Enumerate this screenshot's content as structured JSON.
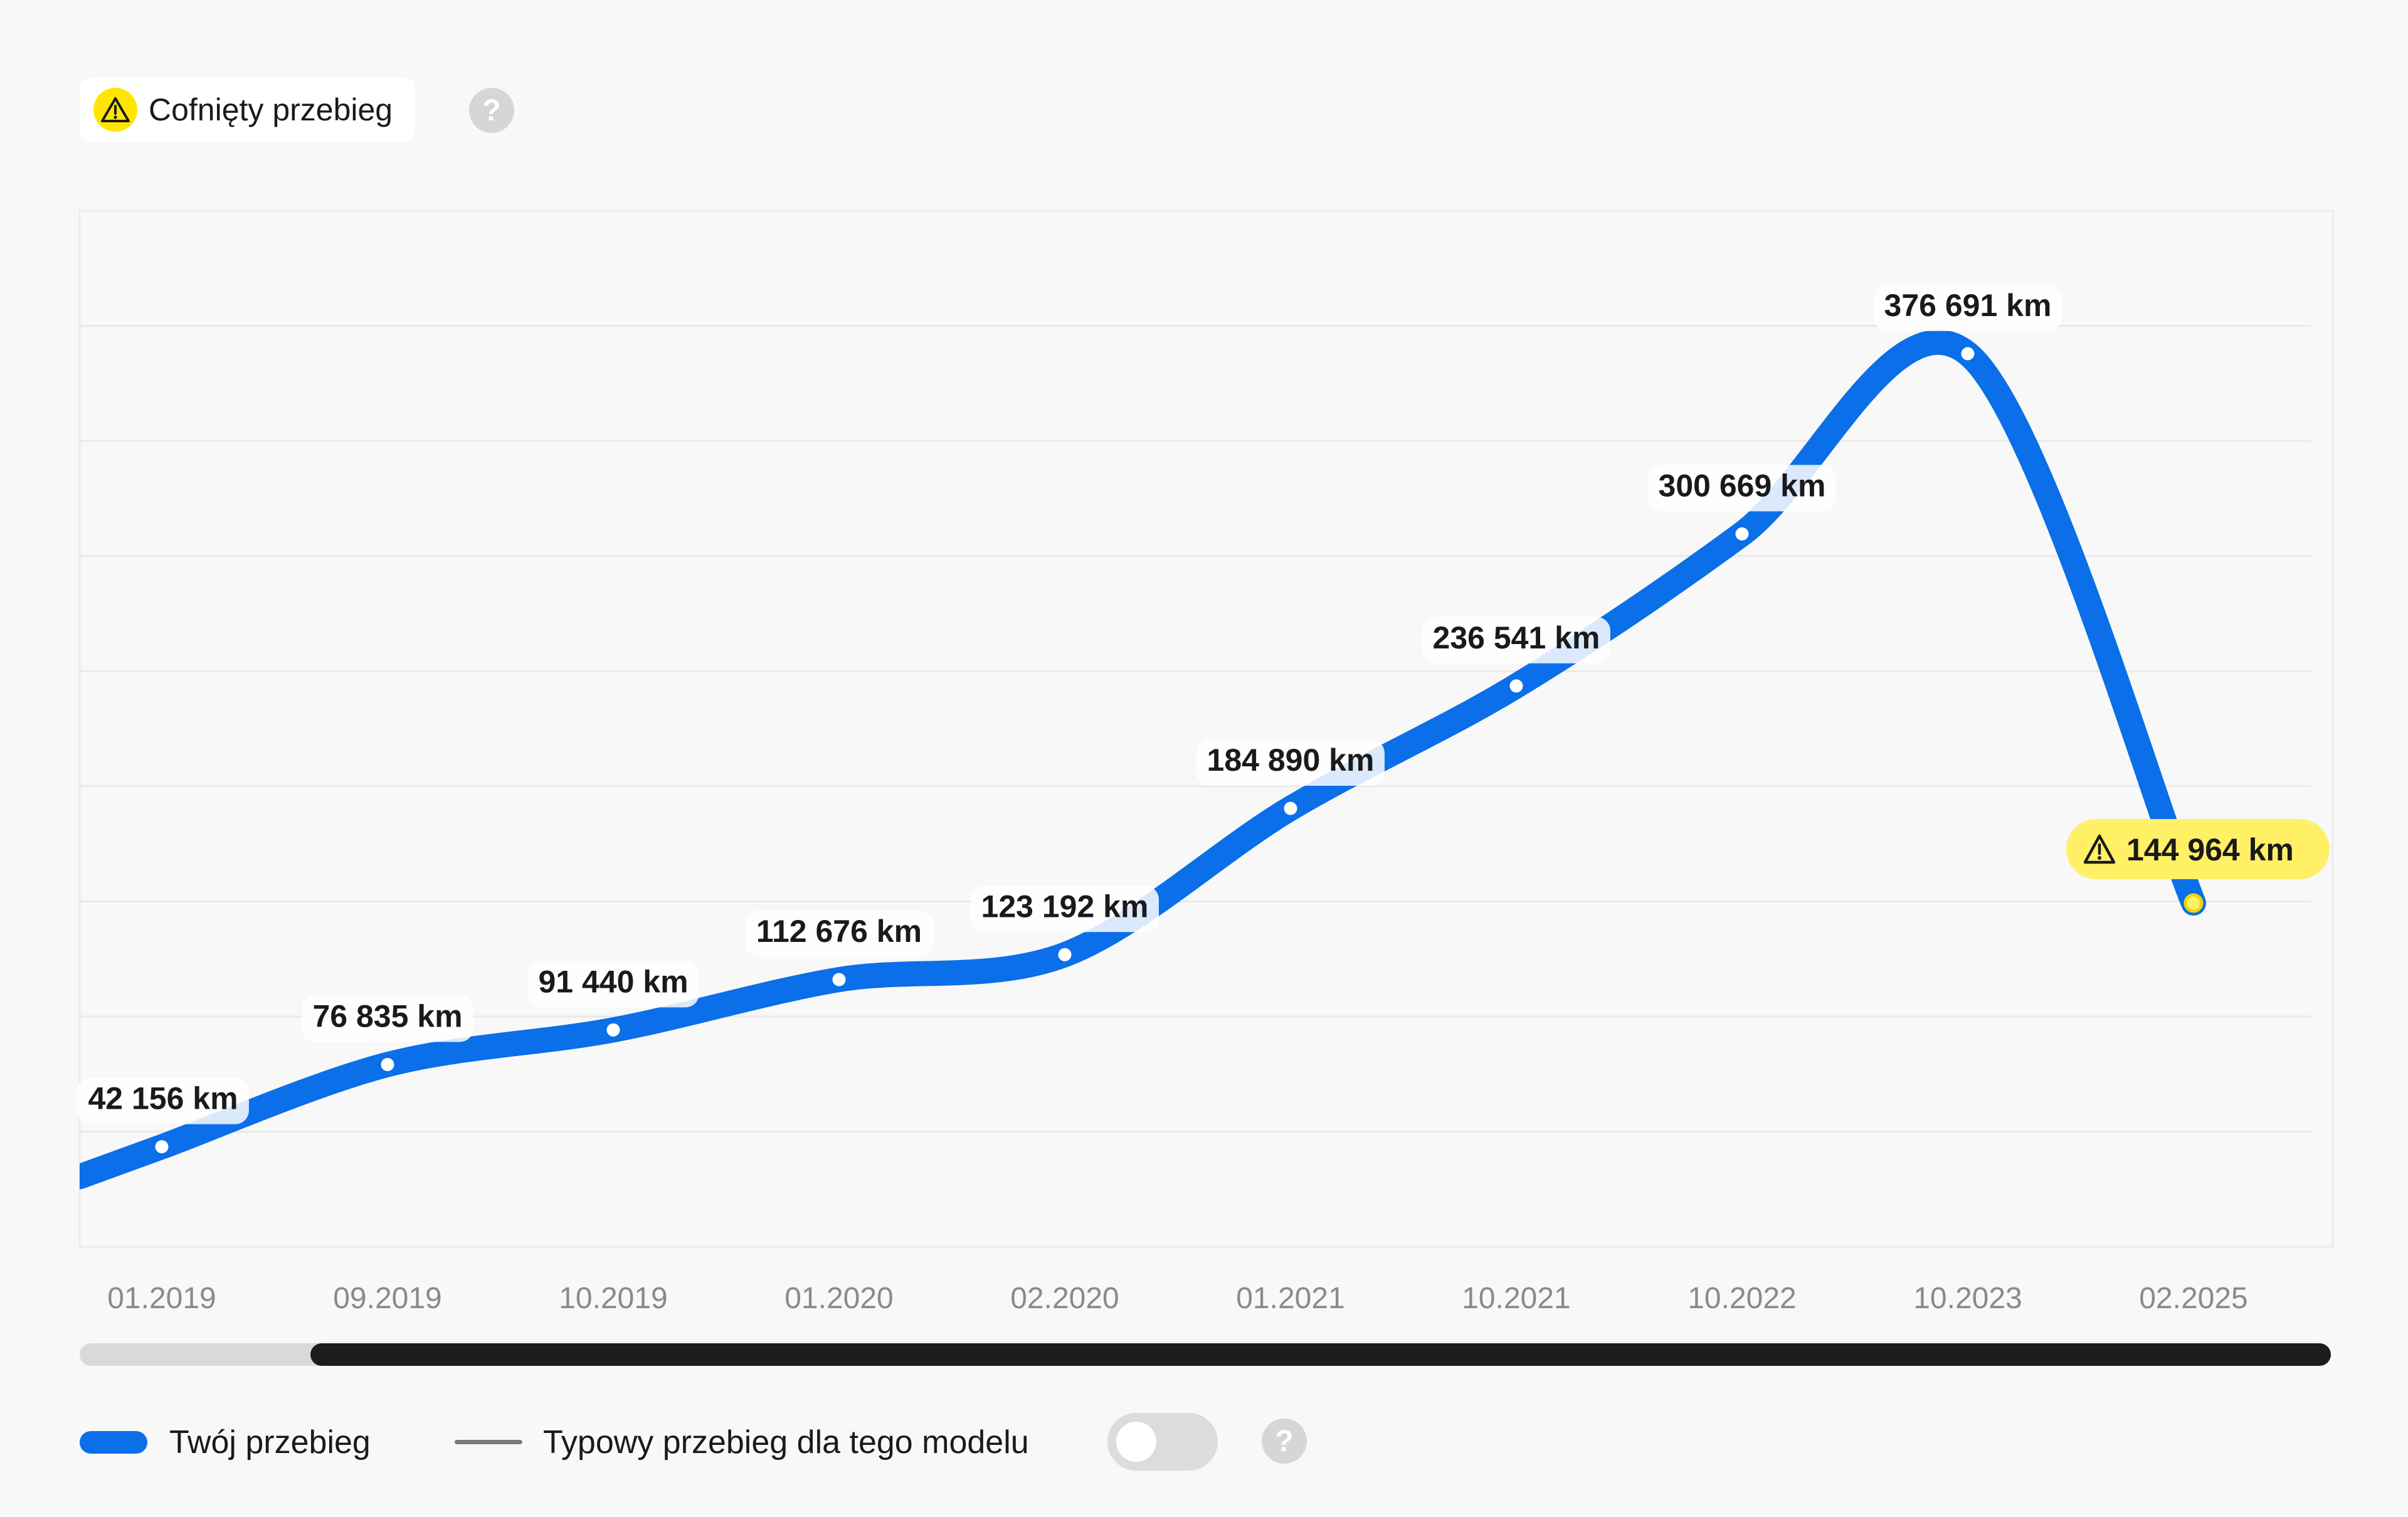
{
  "badge": {
    "label": "Cofnięty przebieg",
    "icon": "warning-icon",
    "color": "#ffe600"
  },
  "help_icon": "?",
  "chart_data": {
    "type": "line",
    "categories": [
      "01.2019",
      "09.2019",
      "10.2019",
      "01.2020",
      "02.2020",
      "01.2021",
      "10.2021",
      "10.2022",
      "10.2023",
      "02.2025"
    ],
    "series": [
      {
        "name": "Twój przebieg",
        "values": [
          42156,
          76835,
          91440,
          112676,
          123192,
          184890,
          236541,
          300669,
          376691,
          144964
        ],
        "labels": [
          "42 156 km",
          "76 835 km",
          "91 440 km",
          "112 676 km",
          "123 192 km",
          "184 890 km",
          "236 541 km",
          "300 669 km",
          "376 691 km",
          "144 964 km"
        ],
        "color": "#0a6fe8"
      }
    ],
    "flagged_index": 9,
    "flag_color": "#fff066",
    "grid": true,
    "xlabel": "",
    "ylabel": ""
  },
  "legend": {
    "own": "Twój przebieg",
    "typical": "Typowy przebieg dla tego modelu",
    "typical_enabled": false
  }
}
